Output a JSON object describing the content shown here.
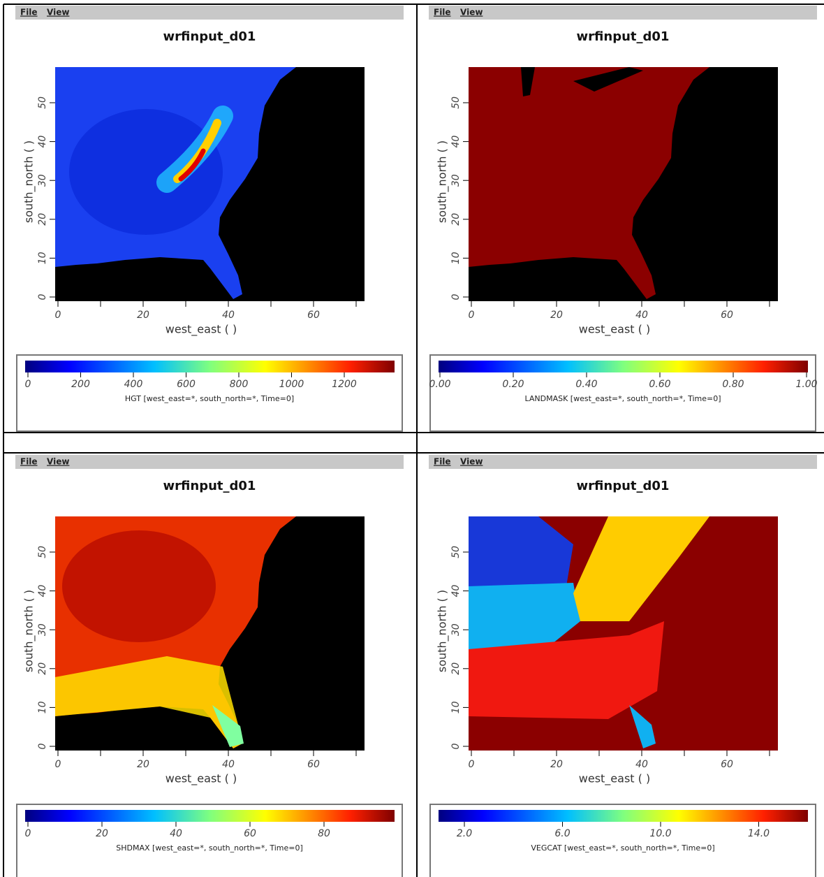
{
  "panels": [
    {
      "menu": [
        "File",
        "View"
      ],
      "title": "wrfinput_d01",
      "x_label": "west_east ( )",
      "y_label": "south_north ( )",
      "x_ticks": [
        "0",
        "20",
        "40",
        "60"
      ],
      "y_ticks": [
        "0",
        "10",
        "20",
        "30",
        "40",
        "50"
      ],
      "colorbar_ticks": [
        "0",
        "200",
        "400",
        "600",
        "800",
        "1000",
        "1200"
      ],
      "caption": "HGT [west_east=*, south_north=*, Time=0]"
    },
    {
      "menu": [
        "File",
        "View"
      ],
      "title": "wrfinput_d01",
      "x_label": "west_east ( )",
      "y_label": "south_north ( )",
      "x_ticks": [
        "0",
        "20",
        "40",
        "60"
      ],
      "y_ticks": [
        "0",
        "10",
        "20",
        "30",
        "40",
        "50"
      ],
      "colorbar_ticks": [
        "0.00",
        "0.20",
        "0.40",
        "0.60",
        "0.80",
        "1.00"
      ],
      "caption": "LANDMASK [west_east=*, south_north=*, Time=0]"
    },
    {
      "menu": [
        "File",
        "View"
      ],
      "title": "wrfinput_d01",
      "x_label": "west_east ( )",
      "y_label": "south_north ( )",
      "x_ticks": [
        "0",
        "20",
        "40",
        "60"
      ],
      "y_ticks": [
        "0",
        "10",
        "20",
        "30",
        "40",
        "50"
      ],
      "colorbar_ticks": [
        "0",
        "20",
        "40",
        "60",
        "80"
      ],
      "caption": "SHDMAX [west_east=*, south_north=*, Time=0]"
    },
    {
      "menu": [
        "File",
        "View"
      ],
      "title": "wrfinput_d01",
      "x_label": "west_east ( )",
      "y_label": "south_north ( )",
      "x_ticks": [
        "0",
        "20",
        "40",
        "60"
      ],
      "y_ticks": [
        "0",
        "10",
        "20",
        "30",
        "40",
        "50"
      ],
      "colorbar_ticks": [
        "2.0",
        "6.0",
        "10.0",
        "14.0"
      ],
      "caption": "VEGCAT [west_east=*, south_north=*, Time=0]"
    }
  ]
}
